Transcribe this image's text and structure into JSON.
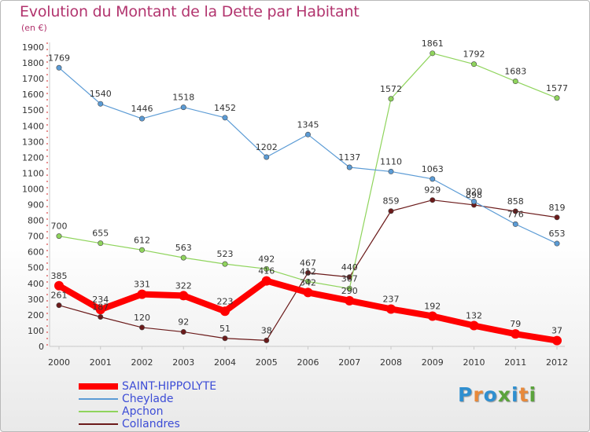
{
  "header": {
    "title": "Evolution du Montant de la Dette par Habitant",
    "subtitle": "(en €)"
  },
  "brand": {
    "text": "Proxiti",
    "letter_colors": [
      "#2f8fd0",
      "#e8893a",
      "#2f8fd0",
      "#5aa33c",
      "#2f8fd0",
      "#e8893a",
      "#5aa33c"
    ]
  },
  "chart_data": {
    "type": "line",
    "title": "Evolution du Montant de la Dette par Habitant",
    "subtitle": "(en €)",
    "xlabel": "",
    "ylabel": "",
    "x": [
      "2000",
      "2001",
      "2002",
      "2003",
      "2004",
      "2005",
      "2006",
      "2007",
      "2008",
      "2009",
      "2010",
      "2011",
      "2012"
    ],
    "ylim": [
      0,
      1900
    ],
    "yticks": [
      0,
      100,
      200,
      300,
      400,
      500,
      600,
      700,
      800,
      900,
      1000,
      1100,
      1200,
      1300,
      1400,
      1500,
      1600,
      1700,
      1800,
      1900
    ],
    "grid": false,
    "legend_position": "bottom-left",
    "series": [
      {
        "name": "SAINT-HIPPOLYTE",
        "color": "#ff0000",
        "values": [
          385,
          234,
          331,
          322,
          223,
          416,
          342,
          290,
          237,
          192,
          132,
          79,
          37
        ],
        "labels": [
          "385",
          "234",
          "331",
          "322",
          "223",
          "416",
          "342",
          "290",
          "237",
          "192",
          "132",
          "79",
          "37"
        ],
        "emphasis": true
      },
      {
        "name": "Cheylade",
        "color": "#5b9bd5",
        "values": [
          1769,
          1540,
          1446,
          1518,
          1452,
          1202,
          1345,
          1137,
          1110,
          1063,
          920,
          776,
          653
        ],
        "labels": [
          "1769",
          "1540",
          "1446",
          "1518",
          "1452",
          "1202",
          "1345",
          "1137",
          "1110",
          "1063",
          "920",
          "776",
          "653"
        ]
      },
      {
        "name": "Apchon",
        "color": "#8fd45c",
        "values": [
          700,
          655,
          612,
          563,
          523,
          492,
          412,
          367,
          1572,
          1861,
          1792,
          1683,
          1577
        ],
        "labels": [
          "700",
          "655",
          "612",
          "563",
          "523",
          "492",
          "412",
          "367",
          "1572",
          "1861",
          "1792",
          "1683",
          "1577"
        ]
      },
      {
        "name": "Collandres",
        "color": "#6b1a1a",
        "values": [
          261,
          187,
          120,
          92,
          51,
          38,
          467,
          440,
          859,
          929,
          898,
          858,
          819
        ],
        "labels": [
          "261",
          "187",
          "120",
          "92",
          "51",
          "38",
          "467",
          "440",
          "859",
          "929",
          "898",
          "858",
          "819"
        ]
      }
    ]
  }
}
